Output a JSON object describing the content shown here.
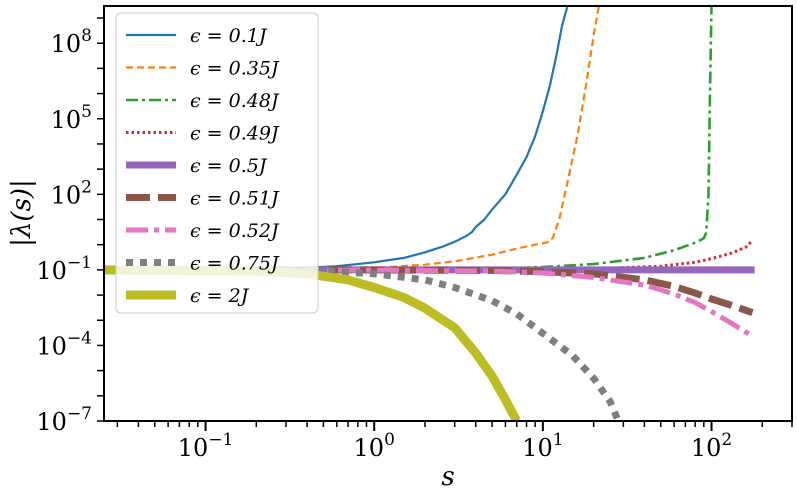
{
  "chart_data": {
    "type": "line",
    "xlabel": "s",
    "ylabel": "|λ(s)|",
    "xscale": "log",
    "yscale": "log",
    "xlim": [
      0.025,
      300
    ],
    "ylim": [
      1e-07,
      3000000000.0
    ],
    "grid": false,
    "legend_position": "upper-left",
    "x_ticks": [
      {
        "value": 0.1,
        "base": "10",
        "exp": "−1"
      },
      {
        "value": 1,
        "base": "10",
        "exp": "0"
      },
      {
        "value": 10,
        "base": "10",
        "exp": "1"
      },
      {
        "value": 100,
        "base": "10",
        "exp": "2"
      }
    ],
    "y_ticks": [
      {
        "value": 1e-07,
        "base": "10",
        "exp": "−7"
      },
      {
        "value": 0.0001,
        "base": "10",
        "exp": "−4"
      },
      {
        "value": 0.1,
        "base": "10",
        "exp": "−1"
      },
      {
        "value": 100,
        "base": "10",
        "exp": "2"
      },
      {
        "value": 100000,
        "base": "10",
        "exp": "5"
      },
      {
        "value": 100000000,
        "base": "10",
        "exp": "8"
      }
    ],
    "series": [
      {
        "name": "ϵ = 0.1J",
        "color": "#1f77b4",
        "width": 2.2,
        "dash": "",
        "points": [
          [
            0.025,
            0.1
          ],
          [
            0.1,
            0.1
          ],
          [
            0.3,
            0.11
          ],
          [
            0.6,
            0.14
          ],
          [
            1,
            0.2
          ],
          [
            1.5,
            0.3
          ],
          [
            2,
            0.5
          ],
          [
            2.5,
            0.8
          ],
          [
            3,
            1.3
          ],
          [
            3.5,
            2.2
          ],
          [
            3.8,
            3.2
          ],
          [
            4,
            5
          ],
          [
            4.5,
            10
          ],
          [
            5,
            25
          ],
          [
            6,
            100
          ],
          [
            7,
            600
          ],
          [
            8,
            3000
          ],
          [
            9,
            20000
          ],
          [
            10,
            200000
          ],
          [
            11,
            2000000
          ],
          [
            12,
            30000000
          ],
          [
            13,
            500000000
          ],
          [
            14,
            3000000000
          ]
        ]
      },
      {
        "name": "ϵ = 0.35J",
        "color": "#ff7f0e",
        "width": 2.2,
        "dash": "7,4",
        "points": [
          [
            0.025,
            0.1
          ],
          [
            0.5,
            0.105
          ],
          [
            1,
            0.12
          ],
          [
            2,
            0.16
          ],
          [
            3,
            0.22
          ],
          [
            5,
            0.4
          ],
          [
            7,
            0.7
          ],
          [
            9,
            1
          ],
          [
            11,
            1.3
          ],
          [
            11.5,
            2
          ],
          [
            12.5,
            10
          ],
          [
            14,
            300
          ],
          [
            16,
            20000
          ],
          [
            18,
            2000000
          ],
          [
            20,
            200000000
          ],
          [
            21.5,
            3000000000
          ]
        ]
      },
      {
        "name": "ϵ = 0.48J",
        "color": "#2ca02c",
        "width": 2.6,
        "dash": "12,4,3,4",
        "points": [
          [
            0.025,
            0.1
          ],
          [
            1,
            0.1
          ],
          [
            5,
            0.11
          ],
          [
            10,
            0.13
          ],
          [
            20,
            0.17
          ],
          [
            40,
            0.3
          ],
          [
            60,
            0.6
          ],
          [
            80,
            1.2
          ],
          [
            90,
            1.8
          ],
          [
            93,
            3
          ],
          [
            96,
            100
          ],
          [
            98,
            1000000
          ],
          [
            100,
            3000000000
          ]
        ]
      },
      {
        "name": "ϵ = 0.49J",
        "color": "#d62728",
        "width": 3,
        "dash": "2.5,3",
        "points": [
          [
            0.025,
            0.1
          ],
          [
            5,
            0.1
          ],
          [
            20,
            0.11
          ],
          [
            50,
            0.14
          ],
          [
            80,
            0.2
          ],
          [
            100,
            0.28
          ],
          [
            130,
            0.45
          ],
          [
            160,
            0.8
          ],
          [
            175,
            1.5
          ]
        ]
      },
      {
        "name": "ϵ = 0.5J",
        "color": "#9467bd",
        "width": 7,
        "dash": "",
        "points": [
          [
            0.025,
            0.1
          ],
          [
            180,
            0.1
          ]
        ]
      },
      {
        "name": "ϵ = 0.51J",
        "color": "#8c564b",
        "width": 7,
        "dash": "24,8",
        "points": [
          [
            0.025,
            0.1
          ],
          [
            1,
            0.1
          ],
          [
            5,
            0.095
          ],
          [
            10,
            0.085
          ],
          [
            20,
            0.07
          ],
          [
            40,
            0.04
          ],
          [
            60,
            0.022
          ],
          [
            80,
            0.012
          ],
          [
            100,
            0.007
          ],
          [
            130,
            0.004
          ],
          [
            175,
            0.002
          ]
        ]
      },
      {
        "name": "ϵ = 0.52J",
        "color": "#e377c2",
        "width": 5,
        "dash": "22,6,5,6",
        "points": [
          [
            0.025,
            0.1
          ],
          [
            1,
            0.098
          ],
          [
            5,
            0.09
          ],
          [
            10,
            0.075
          ],
          [
            20,
            0.05
          ],
          [
            40,
            0.025
          ],
          [
            60,
            0.011
          ],
          [
            80,
            0.005
          ],
          [
            100,
            0.0022
          ],
          [
            130,
            0.0008
          ],
          [
            175,
            0.00023
          ]
        ]
      },
      {
        "name": "ϵ = 0.75J",
        "color": "#7f7f7f",
        "width": 7,
        "dash": "7,7",
        "points": [
          [
            0.025,
            0.1
          ],
          [
            0.2,
            0.1
          ],
          [
            0.5,
            0.09
          ],
          [
            1,
            0.07
          ],
          [
            2,
            0.04
          ],
          [
            3,
            0.02
          ],
          [
            5,
            0.006
          ],
          [
            7,
            0.0018
          ],
          [
            10,
            0.0003
          ],
          [
            15,
            4e-05
          ],
          [
            20,
            5e-06
          ],
          [
            25,
            6e-07
          ],
          [
            28,
            1e-07
          ]
        ]
      },
      {
        "name": "ϵ = 2J",
        "color": "#bcbd22",
        "width": 9,
        "dash": "",
        "points": [
          [
            0.025,
            0.1
          ],
          [
            0.2,
            0.09
          ],
          [
            0.4,
            0.07
          ],
          [
            0.7,
            0.04
          ],
          [
            1,
            0.02
          ],
          [
            1.5,
            0.008
          ],
          [
            2,
            0.003
          ],
          [
            3,
            0.0005
          ],
          [
            4,
            5e-05
          ],
          [
            5,
            6e-06
          ],
          [
            6,
            7e-07
          ],
          [
            7,
            1e-07
          ]
        ]
      }
    ]
  }
}
